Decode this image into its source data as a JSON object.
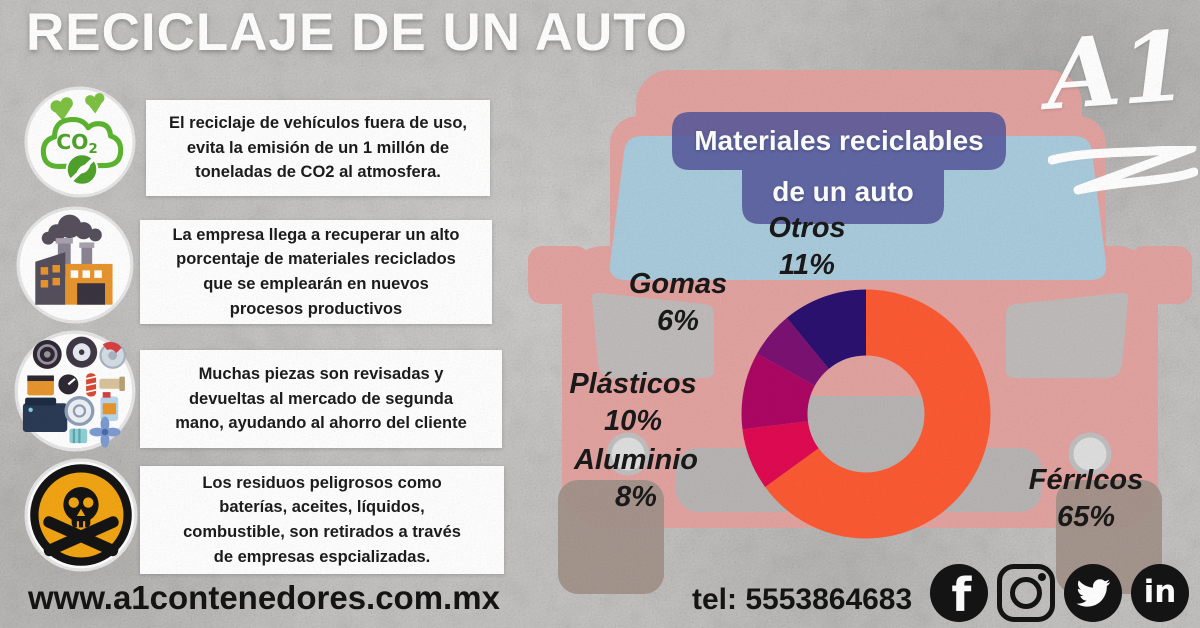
{
  "title": "RECICLAJE DE UN AUTO",
  "logo": {
    "text": "A1"
  },
  "facts": [
    {
      "icon": "co2-cloud-icon",
      "text": "El reciclaje de vehículos fuera de uso,\nevita la emisión de un 1 millón de\ntoneladas de CO2 al atmosfera."
    },
    {
      "icon": "factory-icon",
      "text": "La empresa llega a recuperar un alto\nporcentaje de materiales reciclados\nque se emplearán en nuevos\nprocesos productivos"
    },
    {
      "icon": "car-parts-icon",
      "text": "Muchas piezas son revisadas y\ndevueltas al mercado de segunda\nmano, ayudando al ahorro del cliente"
    },
    {
      "icon": "hazard-skull-icon",
      "text": "Los residuos peligrosos como\nbaterías, aceites, líquidos,\ncombustible, son retirados a través\nde empresas espcializadas."
    }
  ],
  "chart_header": {
    "line1": "Materiales reciclables",
    "line2": "de un auto"
  },
  "chart_data": {
    "type": "pie",
    "variant": "donut",
    "title": "Materiales reciclables de un auto",
    "direction": "clockwise",
    "start_angle_deg": 0,
    "legend_position": "around",
    "segments": [
      {
        "label": "FérrIcos",
        "value": 65,
        "display": "65%",
        "color": "#FB5A33"
      },
      {
        "label": "Aluminio",
        "value": 8,
        "display": "8%",
        "color": "#E00A52"
      },
      {
        "label": "Plásticos",
        "value": 10,
        "display": "10%",
        "color": "#AC0763"
      },
      {
        "label": "Gomas",
        "value": 6,
        "display": "6%",
        "color": "#7B1173"
      },
      {
        "label": "Otros",
        "value": 11,
        "display": "11%",
        "color": "#2A1170"
      }
    ]
  },
  "footer": {
    "website": "www.a1contenedores.com.mx",
    "phone": "tel: 5553864683",
    "social": [
      {
        "name": "facebook",
        "glyph": "f"
      },
      {
        "name": "instagram",
        "glyph": ""
      },
      {
        "name": "twitter",
        "glyph": ""
      },
      {
        "name": "linkedin",
        "glyph": "in"
      }
    ]
  },
  "colors": {
    "background": "#C9C8C6",
    "car_body": "#E2A3A0",
    "windshield": "#A9CBDC",
    "badge": "#54569A",
    "box_bg": "#FFFFFF",
    "text_dark": "#1C1C1C",
    "title_white": "#FFFFFF"
  }
}
